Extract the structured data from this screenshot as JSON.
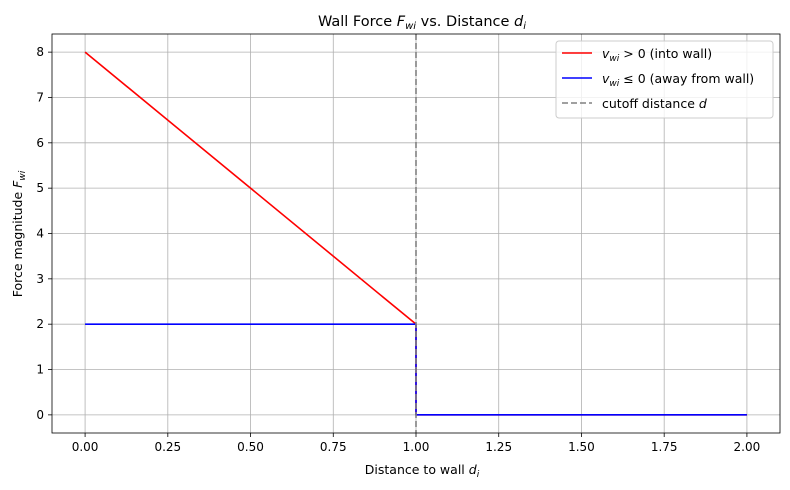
{
  "chart_data": {
    "type": "line",
    "title": {
      "prefix": "Wall Force ",
      "sym1": "F",
      "sub1": "wi",
      "mid": " vs. Distance ",
      "sym2": "d",
      "sub2": "i"
    },
    "xlabel": {
      "text": "Distance to wall ",
      "sym": "d",
      "sub": "i"
    },
    "ylabel": {
      "text": "Force magnitude ",
      "sym": "F",
      "sub": "wi"
    },
    "xlim": [
      -0.1,
      2.1
    ],
    "ylim": [
      -0.4,
      8.4
    ],
    "x_ticks": [
      0.0,
      0.25,
      0.5,
      0.75,
      1.0,
      1.25,
      1.5,
      1.75,
      2.0
    ],
    "x_tick_labels": [
      "0.00",
      "0.25",
      "0.50",
      "0.75",
      "1.00",
      "1.25",
      "1.50",
      "1.75",
      "2.00"
    ],
    "y_ticks": [
      0,
      1,
      2,
      3,
      4,
      5,
      6,
      7,
      8
    ],
    "y_tick_labels": [
      "0",
      "1",
      "2",
      "3",
      "4",
      "5",
      "6",
      "7",
      "8"
    ],
    "grid": true,
    "legend_position": "top-right",
    "series": [
      {
        "legend": {
          "sym": "v",
          "sub": "wi",
          "rel": " > 0 (into wall)"
        },
        "color": "#ff0000",
        "style": "solid",
        "points": [
          [
            0.0,
            8.0
          ],
          [
            1.0,
            2.0
          ],
          [
            1.0,
            0.0
          ],
          [
            2.0,
            0.0
          ]
        ]
      },
      {
        "legend": {
          "sym": "v",
          "sub": "wi",
          "rel": " ≤ 0 (away from wall)"
        },
        "color": "#0000ff",
        "style": "solid",
        "points": [
          [
            0.0,
            2.0
          ],
          [
            1.0,
            2.0
          ],
          [
            1.0,
            0.0
          ],
          [
            2.0,
            0.0
          ]
        ]
      }
    ],
    "vlines": [
      {
        "x": 1.0,
        "color": "#808080",
        "style": "dashed",
        "legend": {
          "text": "cutoff distance ",
          "sym": "d"
        }
      }
    ]
  }
}
